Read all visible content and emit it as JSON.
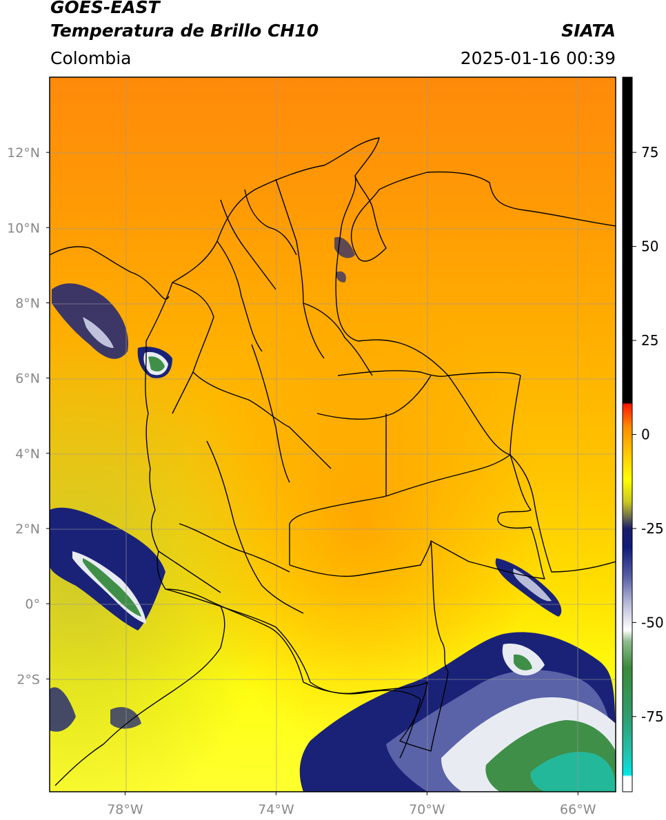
{
  "header": {
    "satellite": "GOES-EAST",
    "product": "Temperatura de Brillo CH10",
    "brand": "SIATA",
    "region": "Colombia",
    "timestamp": "2025-01-16 00:39"
  },
  "map": {
    "lat_ticks": [
      {
        "value": 12,
        "label": "12°N"
      },
      {
        "value": 10,
        "label": "10°N"
      },
      {
        "value": 8,
        "label": "8°N"
      },
      {
        "value": 6,
        "label": "6°N"
      },
      {
        "value": 4,
        "label": "4°N"
      },
      {
        "value": 2,
        "label": "2°N"
      },
      {
        "value": 0,
        "label": "0°"
      },
      {
        "value": -2,
        "label": "2°S"
      }
    ],
    "lon_ticks": [
      {
        "value": -78,
        "label": "78°W"
      },
      {
        "value": -74,
        "label": "74°W"
      },
      {
        "value": -70,
        "label": "70°W"
      },
      {
        "value": -66,
        "label": "66°W"
      }
    ],
    "lat_range": [
      -5,
      14
    ],
    "lon_range": [
      -80,
      -65
    ]
  },
  "colorbar": {
    "range": [
      -95,
      95
    ],
    "ticks": [
      {
        "value": 75,
        "label": "75"
      },
      {
        "value": 50,
        "label": "50"
      },
      {
        "value": 25,
        "label": "25"
      },
      {
        "value": 0,
        "label": "0"
      },
      {
        "value": -25,
        "label": "-25"
      },
      {
        "value": -50,
        "label": "-50"
      },
      {
        "value": -75,
        "label": "-75"
      }
    ],
    "stops": [
      {
        "value": -95,
        "color": "#ffffff"
      },
      {
        "value": -91,
        "color": "#ffffff"
      },
      {
        "value": -90.5,
        "color": "#00e5e5"
      },
      {
        "value": -85,
        "color": "#22c4b0"
      },
      {
        "value": -75,
        "color": "#2e9e6e"
      },
      {
        "value": -62,
        "color": "#3a8a3a"
      },
      {
        "value": -55,
        "color": "#8fbc8f"
      },
      {
        "value": -52,
        "color": "#ffffff"
      },
      {
        "value": -45,
        "color": "#b8bcd8"
      },
      {
        "value": -38,
        "color": "#5a62a8"
      },
      {
        "value": -30,
        "color": "#101a7a"
      },
      {
        "value": -25,
        "color": "#1a1f6b"
      },
      {
        "value": -22,
        "color": "#6a6a50"
      },
      {
        "value": -18,
        "color": "#c8c820"
      },
      {
        "value": -12,
        "color": "#ffff00"
      },
      {
        "value": -5,
        "color": "#ffc800"
      },
      {
        "value": 2,
        "color": "#ff8c00"
      },
      {
        "value": 8,
        "color": "#ff1a00"
      },
      {
        "value": 8.5,
        "color": "#000000"
      },
      {
        "value": 95,
        "color": "#000000"
      }
    ]
  },
  "colors": {
    "ocean_north": "#ff8a0a",
    "land_mid": "#ffb000",
    "south_yellow": "#ffff10",
    "cloud_blue": "#1a2278",
    "cloud_white": "#f0f0f5",
    "cloud_green": "#3f8f48",
    "cloud_teal": "#24b89a",
    "boundary": "#000000",
    "grid": "#999999"
  }
}
